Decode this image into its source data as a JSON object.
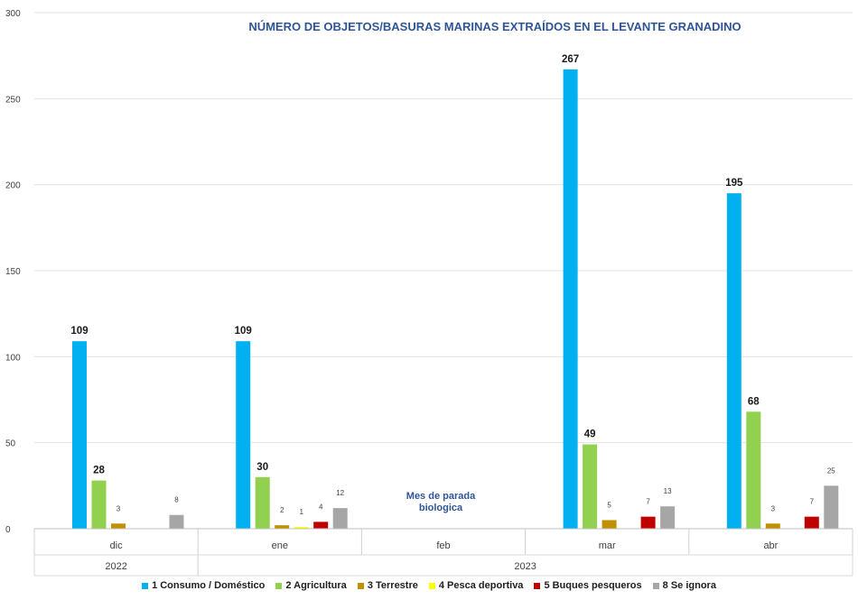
{
  "chart_data": {
    "type": "bar",
    "title": "NÚMERO DE OBJETOS/BASURAS MARINAS EXTRAÍDOS EN EL LEVANTE GRANADINO",
    "categories": [
      "dic",
      "ene",
      "feb",
      "mar",
      "abr"
    ],
    "years": [
      {
        "label": "2022",
        "span": [
          "dic"
        ]
      },
      {
        "label": "2023",
        "span": [
          "ene",
          "feb",
          "mar",
          "abr"
        ]
      }
    ],
    "ylim": [
      0,
      300
    ],
    "yticks": [
      "0",
      "50",
      "100",
      "150",
      "200",
      "250",
      "300"
    ],
    "grid": true,
    "legend_position": "bottom",
    "annotation": {
      "lines": [
        "Mes de parada",
        "biologica"
      ],
      "category": "feb"
    },
    "series": [
      {
        "name": "1 Consumo / Doméstico",
        "color": "#00b0f0",
        "values": [
          109,
          109,
          null,
          267,
          195
        ],
        "labels": [
          "109",
          "109",
          "",
          "267",
          "195"
        ]
      },
      {
        "name": "2 Agricultura",
        "color": "#92d050",
        "values": [
          28,
          30,
          null,
          49,
          68
        ],
        "labels": [
          "28",
          "30",
          "",
          "49",
          "68"
        ]
      },
      {
        "name": "3 Terrestre",
        "color": "#bf9000",
        "values": [
          3,
          2,
          null,
          5,
          3
        ],
        "labels": [
          "3",
          "2",
          "",
          "5",
          "3"
        ]
      },
      {
        "name": "4 Pesca deportiva",
        "color": "#ffff00",
        "values": [
          null,
          1,
          null,
          null,
          null
        ],
        "labels": [
          "",
          "1",
          "",
          "",
          ""
        ]
      },
      {
        "name": "5 Buques pesqueros",
        "color": "#c00000",
        "values": [
          null,
          4,
          null,
          7,
          7
        ],
        "labels": [
          "",
          "4",
          "",
          "7",
          "7"
        ]
      },
      {
        "name": "8 Se ignora",
        "color": "#a6a6a6",
        "values": [
          8,
          12,
          null,
          13,
          25
        ],
        "labels": [
          "8",
          "12",
          "",
          "13",
          "25"
        ]
      }
    ]
  }
}
